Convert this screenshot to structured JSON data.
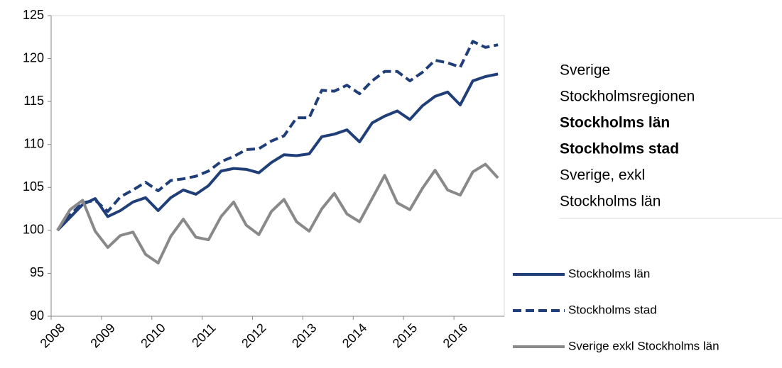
{
  "chart_data": {
    "type": "line",
    "categories": [
      "2008",
      null,
      null,
      null,
      "2009",
      null,
      null,
      null,
      "2010",
      null,
      null,
      null,
      "2011",
      null,
      null,
      null,
      "2012",
      null,
      null,
      null,
      "2013",
      null,
      null,
      null,
      "2014",
      null,
      null,
      null,
      "2015",
      null,
      null,
      null,
      "2016",
      null,
      null,
      null
    ],
    "series": [
      {
        "name": "Stockholms län",
        "color": "#203f79",
        "dash": false,
        "values": [
          100,
          101.5,
          103,
          103.7,
          101.6,
          102.3,
          103.3,
          103.8,
          102.3,
          103.8,
          104.7,
          104.2,
          105.2,
          106.9,
          107.2,
          107.1,
          106.7,
          107.9,
          108.8,
          108.7,
          108.9,
          110.9,
          111.2,
          111.7,
          110.3,
          112.5,
          113.3,
          113.9,
          112.9,
          114.5,
          115.6,
          116.1,
          114.6,
          117.4,
          117.9,
          118.2
        ]
      },
      {
        "name": "Stockholms stad",
        "color": "#203f79",
        "dash": true,
        "values": [
          100,
          101.8,
          103.2,
          103.5,
          102.2,
          103.9,
          104.7,
          105.6,
          104.6,
          105.8,
          106.0,
          106.3,
          106.9,
          108.0,
          108.6,
          109.4,
          109.5,
          110.4,
          111.0,
          113.1,
          113.1,
          116.3,
          116.2,
          116.9,
          115.9,
          117.4,
          118.5,
          118.5,
          117.4,
          118.4,
          119.8,
          119.5,
          119.0,
          122.0,
          121.3,
          121.6
        ]
      },
      {
        "name": "Sverige exkl Stockholms län",
        "color": "#898989",
        "dash": false,
        "values": [
          100,
          102.4,
          103.5,
          99.9,
          98.0,
          99.4,
          99.8,
          97.2,
          96.2,
          99.3,
          101.3,
          99.2,
          98.9,
          101.6,
          103.3,
          100.6,
          99.5,
          102.2,
          103.6,
          101.0,
          99.9,
          102.5,
          104.3,
          101.9,
          101.0,
          103.7,
          106.4,
          103.2,
          102.4,
          104.9,
          107.0,
          104.7,
          104.1,
          106.8,
          107.7,
          106.1
        ]
      }
    ],
    "ylim": [
      90,
      125
    ],
    "yticks": [
      90,
      95,
      100,
      105,
      110,
      115,
      120,
      125
    ],
    "side_labels": [
      {
        "text": "Sverige",
        "bold": false
      },
      {
        "text": "Stockholmsregionen",
        "bold": false
      },
      {
        "text": "Stockholms län",
        "bold": true
      },
      {
        "text": "Stockholms stad",
        "bold": true
      },
      {
        "text": "Sverige, exkl",
        "bold": false
      },
      {
        "text": "Stockholms län",
        "bold": false
      }
    ]
  }
}
